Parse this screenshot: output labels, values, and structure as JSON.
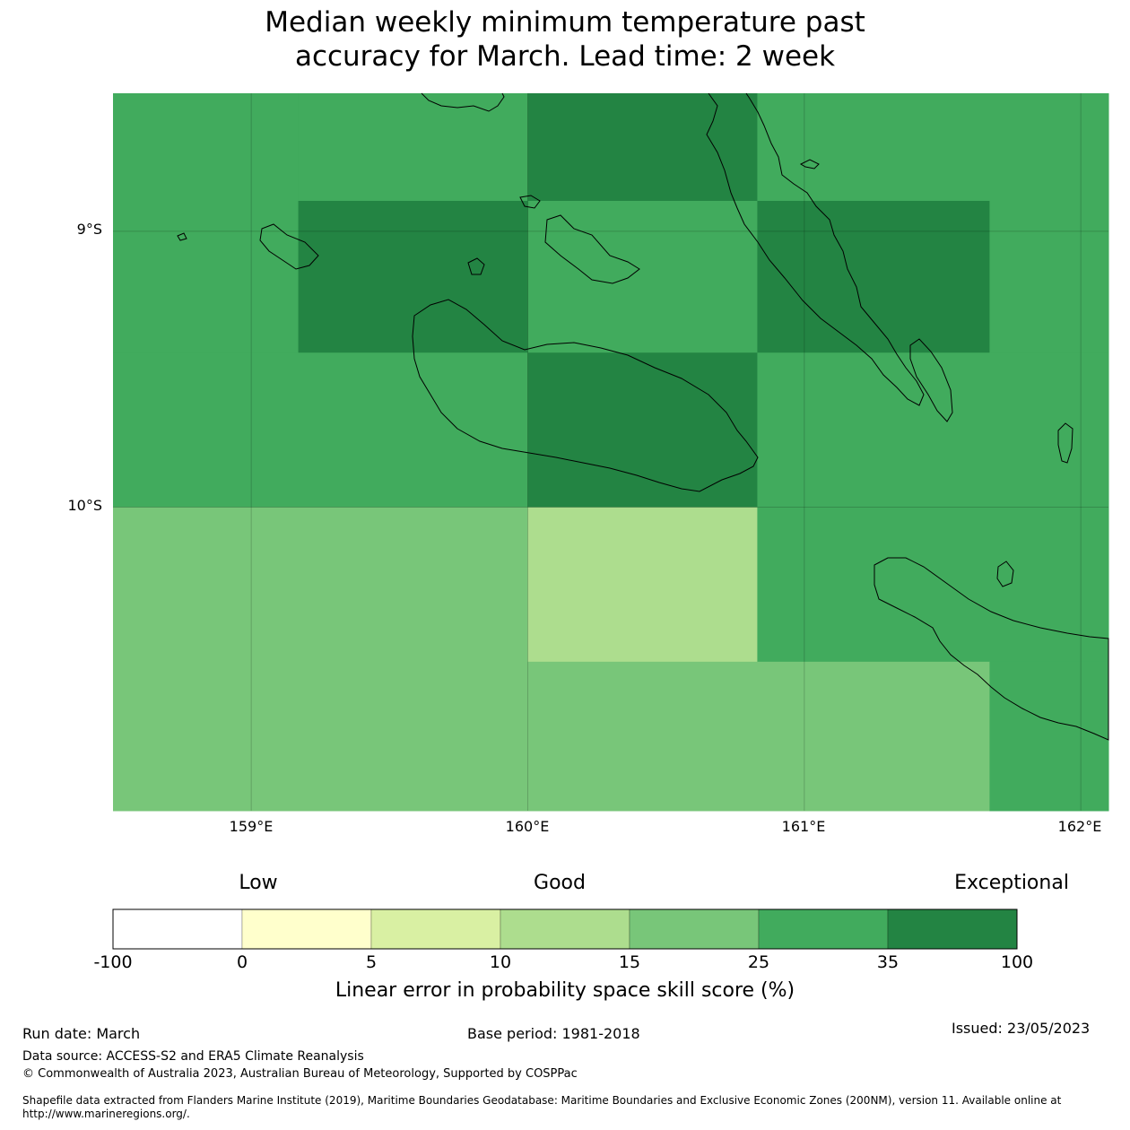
{
  "title": {
    "line1": "Median weekly minimum temperature past",
    "line2": "accuracy for March. Lead time: 2 week"
  },
  "map": {
    "lat_labels": [
      "9°S",
      "10°S"
    ],
    "lon_labels": [
      "159°E",
      "160°E",
      "161°E",
      "162°E"
    ],
    "extent": {
      "lon_min": 158.5,
      "lon_max": 162.1,
      "lat_min": -11.1,
      "lat_max": -8.5
    },
    "skill_cells": [
      {
        "lon": [
          158.5,
          159.17
        ],
        "lat": [
          -8.5,
          -8.89
        ],
        "category": "25-35"
      },
      {
        "lon": [
          159.17,
          160.0
        ],
        "lat": [
          -8.5,
          -8.89
        ],
        "category": "25-35"
      },
      {
        "lon": [
          160.0,
          160.83
        ],
        "lat": [
          -8.5,
          -8.89
        ],
        "category": "35-100"
      },
      {
        "lon": [
          160.83,
          162.1
        ],
        "lat": [
          -8.5,
          -8.89
        ],
        "category": "25-35"
      },
      {
        "lon": [
          158.5,
          159.17
        ],
        "lat": [
          -8.89,
          -9.44
        ],
        "category": "25-35"
      },
      {
        "lon": [
          159.17,
          160.0
        ],
        "lat": [
          -8.89,
          -9.44
        ],
        "category": "35-100"
      },
      {
        "lon": [
          160.0,
          160.83
        ],
        "lat": [
          -8.89,
          -9.44
        ],
        "category": "25-35"
      },
      {
        "lon": [
          160.83,
          161.67
        ],
        "lat": [
          -8.89,
          -9.44
        ],
        "category": "35-100"
      },
      {
        "lon": [
          161.67,
          162.1
        ],
        "lat": [
          -8.89,
          -9.44
        ],
        "category": "25-35"
      },
      {
        "lon": [
          158.5,
          160.0
        ],
        "lat": [
          -9.44,
          -10.0
        ],
        "category": "25-35"
      },
      {
        "lon": [
          160.0,
          160.83
        ],
        "lat": [
          -9.44,
          -10.0
        ],
        "category": "35-100"
      },
      {
        "lon": [
          160.83,
          162.1
        ],
        "lat": [
          -9.44,
          -10.0
        ],
        "category": "25-35"
      },
      {
        "lon": [
          158.5,
          160.0
        ],
        "lat": [
          -10.0,
          -11.1
        ],
        "category": "15-25"
      },
      {
        "lon": [
          160.0,
          160.83
        ],
        "lat": [
          -10.0,
          -10.56
        ],
        "category": "10-15"
      },
      {
        "lon": [
          160.83,
          162.1
        ],
        "lat": [
          -10.0,
          -10.56
        ],
        "category": "25-35"
      },
      {
        "lon": [
          160.0,
          161.67
        ],
        "lat": [
          -10.56,
          -11.1
        ],
        "category": "15-25"
      },
      {
        "lon": [
          161.67,
          162.1
        ],
        "lat": [
          -10.56,
          -11.1
        ],
        "category": "25-35"
      }
    ]
  },
  "colorbar": {
    "top_labels": {
      "low": "Low",
      "good": "Good",
      "exceptional": "Exceptional"
    },
    "ticks": [
      "-100",
      "0",
      "5",
      "10",
      "15",
      "25",
      "35",
      "100"
    ],
    "colors": [
      "#ffffff",
      "#ffffcc",
      "#d9f0a3",
      "#addd8e",
      "#78c679",
      "#41ab5d",
      "#238443"
    ],
    "label": "Linear error in probability space skill score (%)"
  },
  "category_colors": {
    "10-15": "#addd8e",
    "15-25": "#78c679",
    "25-35": "#41ab5d",
    "35-100": "#238443"
  },
  "footer": {
    "run_date": "Run date: March",
    "base_period": "Base period: 1981-2018",
    "issued": "Issued: 23/05/2023",
    "data_source": "Data source: ACCESS-S2 and ERA5 Climate Reanalysis",
    "copyright": "© Commonwealth of Australia 2023, Australian Bureau of Meteorology, Supported by COSPPac",
    "shapefile": "Shapefile data extracted from Flanders Marine Institute (2019), Maritime Boundaries Geodatabase: Maritime Boundaries and Exclusive Economic Zones (200NM), version 11. Available online at http://www.marineregions.org/."
  }
}
